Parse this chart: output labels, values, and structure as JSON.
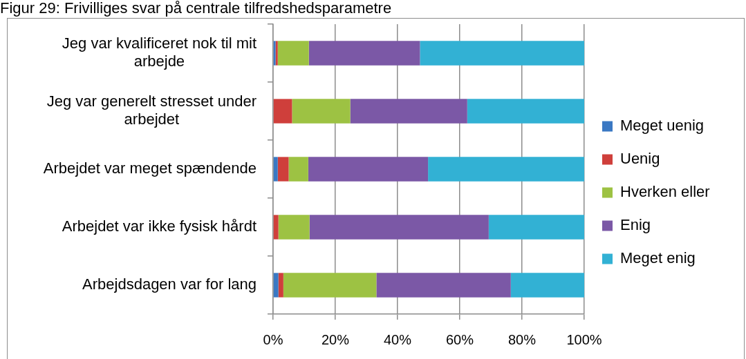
{
  "chart_data": {
    "type": "bar",
    "title": "Figur 29: Frivilliges svar på centrale tilfredshedsparametre",
    "orientation": "horizontal",
    "stacked": true,
    "categories": [
      "Jeg var kvalificeret nok til mit arbejde",
      "Jeg var generelt stresset under arbejdet",
      "Arbejdet var meget spændende",
      "Arbejdet var ikke fysisk hårdt",
      "Arbejdsdagen var for lang"
    ],
    "series": [
      {
        "name": "Meget uenig",
        "color": "#3a78c3",
        "values": [
          0.8,
          0,
          1.5,
          0,
          1.7
        ]
      },
      {
        "name": "Uenig",
        "color": "#cf3f3b",
        "values": [
          0.7,
          6.1,
          3.5,
          1.7,
          1.6
        ]
      },
      {
        "name": "Hverken eller",
        "color": "#9dc243",
        "values": [
          10.0,
          18.7,
          6.3,
          10.0,
          29.9
        ]
      },
      {
        "name": "Enig",
        "color": "#7b58a6",
        "values": [
          35.7,
          37.6,
          38.5,
          57.6,
          43.2
        ]
      },
      {
        "name": "Meget enig",
        "color": "#32b1d4",
        "values": [
          52.8,
          37.6,
          50.2,
          30.7,
          23.6
        ]
      }
    ],
    "xlim": [
      0,
      100
    ],
    "xticks": [
      {
        "value": 0,
        "label": "0%"
      },
      {
        "value": 20,
        "label": "20%"
      },
      {
        "value": 40,
        "label": "40%"
      },
      {
        "value": 60,
        "label": "60%"
      },
      {
        "value": 80,
        "label": "80%"
      },
      {
        "value": 100,
        "label": "100%"
      }
    ],
    "grid": "x",
    "legend": "right"
  }
}
